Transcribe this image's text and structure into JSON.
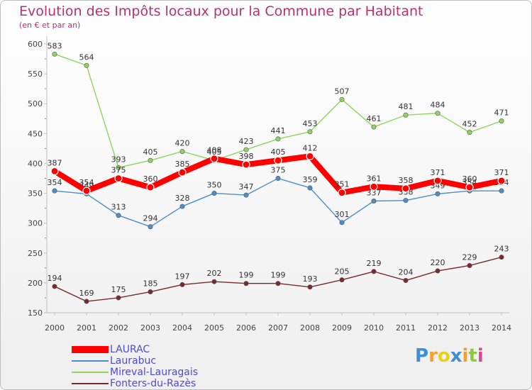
{
  "chart_data": {
    "type": "line",
    "title": "Evolution des Impôts locaux pour la Commune par Habitant",
    "subtitle": "(en € et par an)",
    "x": [
      "2000",
      "2001",
      "2002",
      "2003",
      "2004",
      "2005",
      "2006",
      "2007",
      "2008",
      "2009",
      "2010",
      "2011",
      "2012",
      "2013",
      "2014"
    ],
    "ylim": [
      150,
      600
    ],
    "yticks": [
      150,
      200,
      250,
      300,
      350,
      400,
      450,
      500,
      550,
      600
    ],
    "grid": false,
    "legend": "bottom-left",
    "series": [
      {
        "name": "LAURAC",
        "color": "#ff0000",
        "values": [
          387,
          354,
          375,
          360,
          385,
          408,
          398,
          405,
          412,
          351,
          361,
          358,
          371,
          360,
          371
        ]
      },
      {
        "name": "Laurabuc",
        "color": "#4a8fc9",
        "values": [
          354,
          349,
          313,
          294,
          328,
          350,
          347,
          375,
          359,
          301,
          337,
          338,
          349,
          354,
          354
        ]
      },
      {
        "name": "Mireval-Lauragais",
        "color": "#8fd460",
        "values": [
          583,
          564,
          393,
          405,
          420,
          405,
          423,
          441,
          453,
          507,
          461,
          481,
          484,
          452,
          471
        ]
      },
      {
        "name": "Fonters-du-Razès",
        "color": "#7a2a2a",
        "values": [
          194,
          169,
          175,
          185,
          197,
          202,
          199,
          199,
          193,
          205,
          219,
          204,
          220,
          229,
          243
        ]
      }
    ]
  },
  "logo": {
    "letters": [
      "P",
      "r",
      "o",
      "x",
      "i",
      "t",
      "i"
    ],
    "colors": [
      "#3d8fd8",
      "#f0a030",
      "#e8d020",
      "#3d8fd8",
      "#f0a030",
      "#8fc83c",
      "#d84a8a"
    ]
  }
}
